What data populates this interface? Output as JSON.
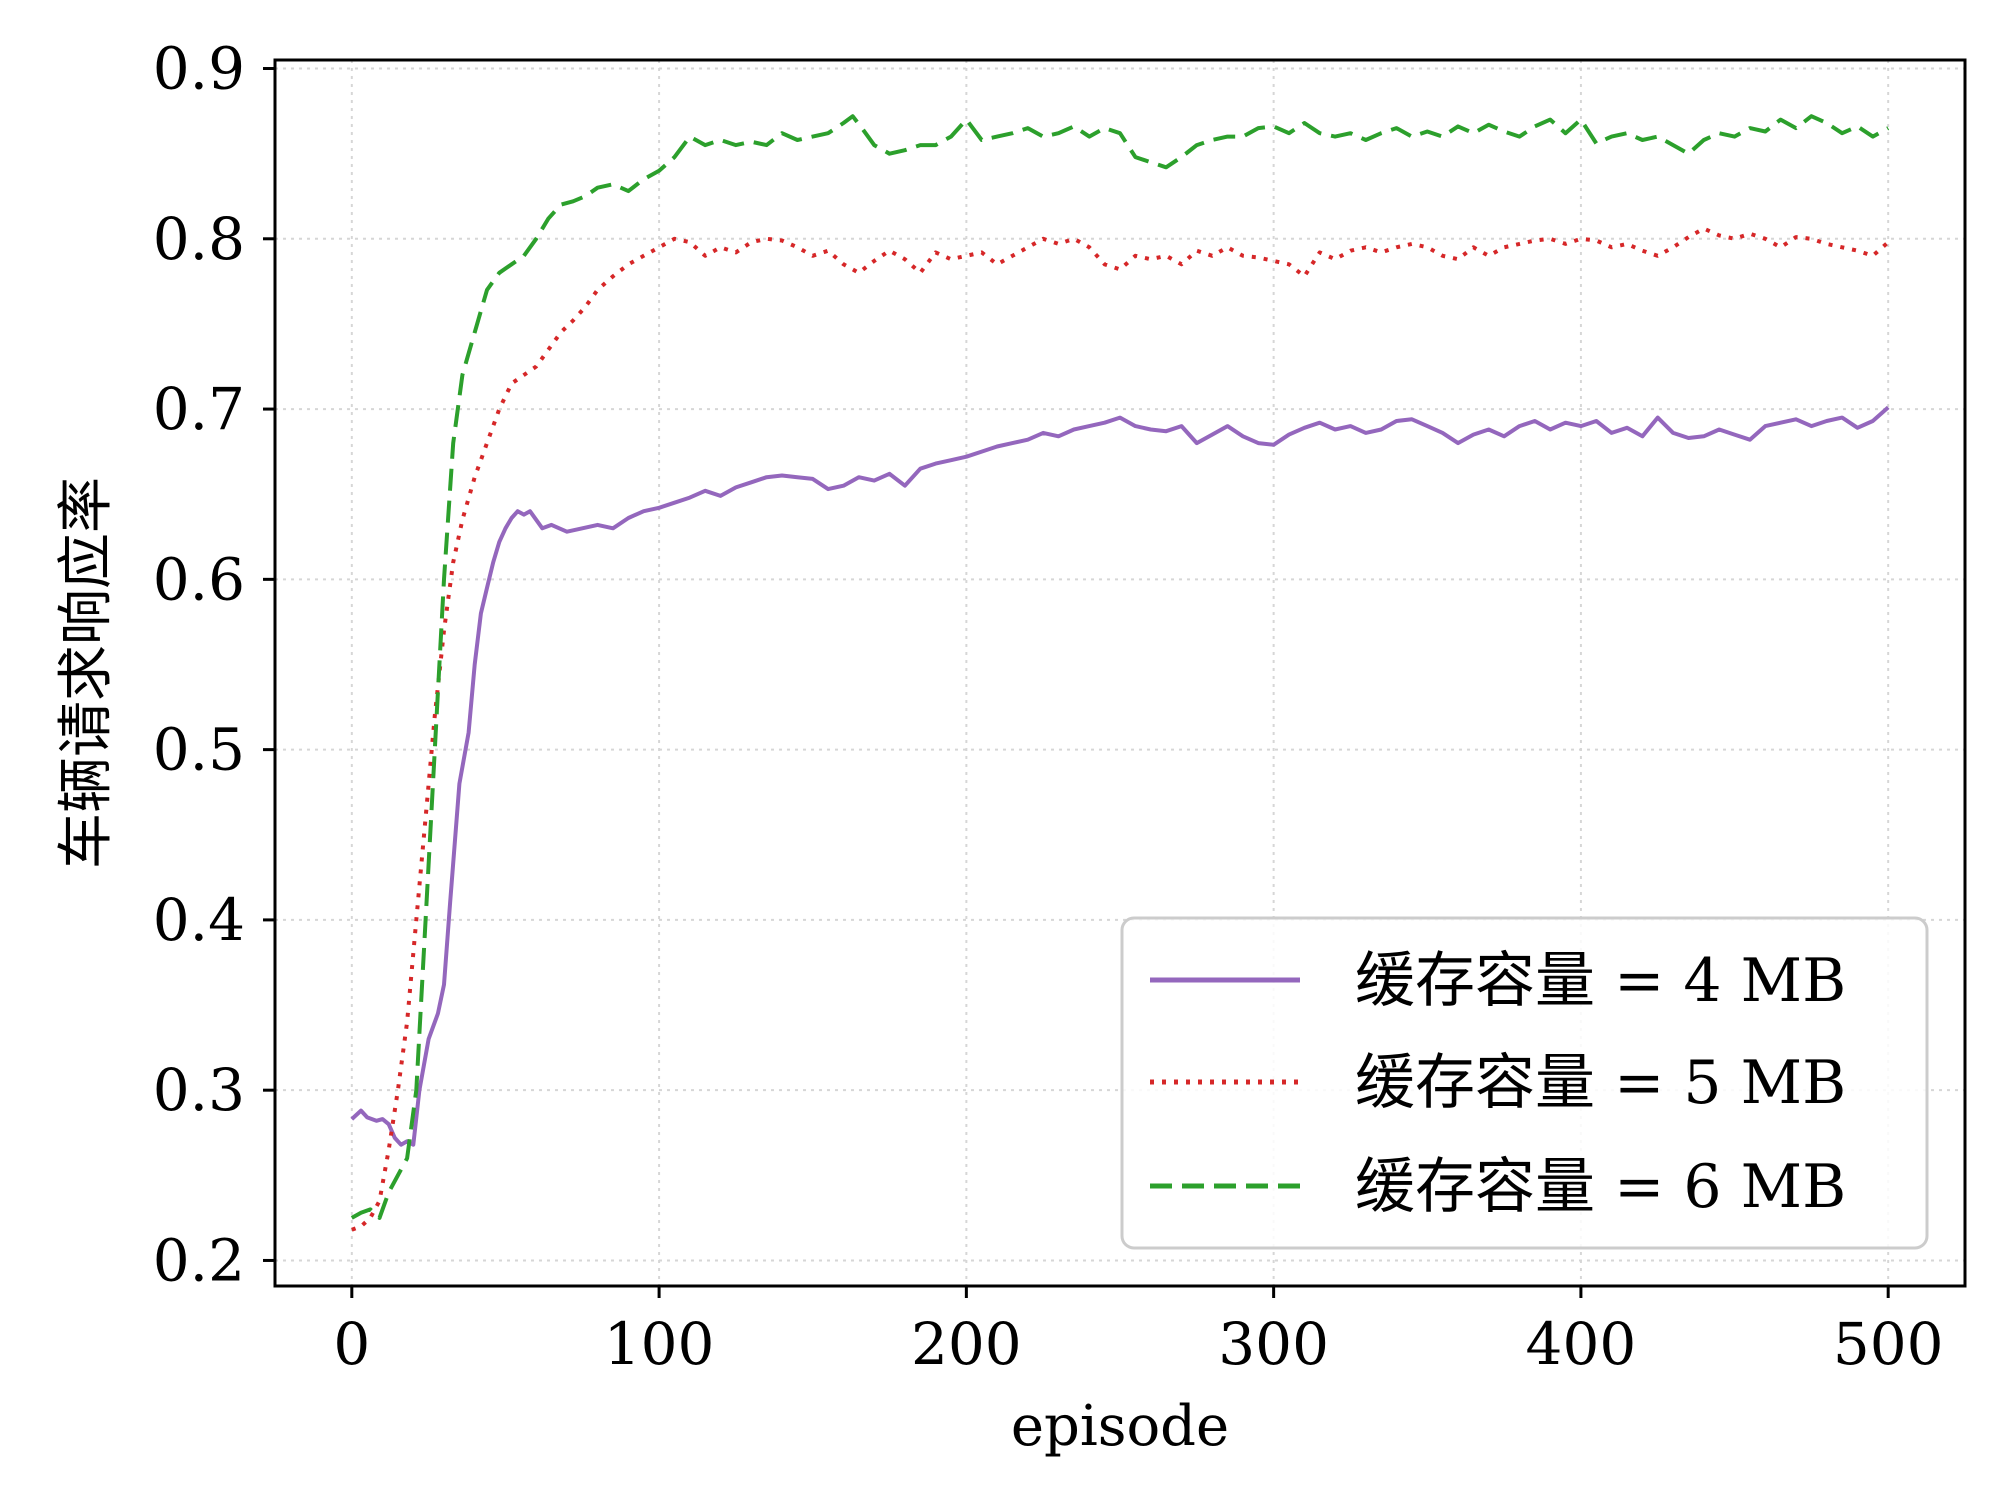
{
  "chart_data": {
    "type": "line",
    "title": "",
    "xlabel": "episode",
    "ylabel": "车辆请求响应率",
    "xlim": [
      -25,
      525
    ],
    "ylim": [
      0.185,
      0.905
    ],
    "xticks": [
      0,
      100,
      200,
      300,
      400,
      500
    ],
    "xtick_labels": [
      "0",
      "100",
      "200",
      "300",
      "400",
      "500"
    ],
    "yticks": [
      0.2,
      0.3,
      0.4,
      0.5,
      0.6,
      0.7,
      0.8,
      0.9
    ],
    "ytick_labels": [
      "0.2",
      "0.3",
      "0.4",
      "0.5",
      "0.6",
      "0.7",
      "0.8",
      "0.9"
    ],
    "grid": true,
    "legend_position": "lower-right",
    "series": [
      {
        "name": "缓存容量 = 4 MB",
        "color": "#9467bd",
        "style": "solid",
        "x": [
          0,
          3,
          5,
          8,
          10,
          12,
          14,
          16,
          18,
          20,
          22,
          25,
          28,
          30,
          32,
          35,
          38,
          40,
          42,
          44,
          46,
          48,
          50,
          52,
          54,
          56,
          58,
          60,
          62,
          65,
          70,
          75,
          80,
          85,
          90,
          95,
          100,
          105,
          110,
          115,
          120,
          125,
          130,
          135,
          140,
          145,
          150,
          155,
          160,
          165,
          170,
          175,
          180,
          185,
          190,
          195,
          200,
          205,
          210,
          215,
          220,
          225,
          230,
          235,
          240,
          245,
          250,
          255,
          260,
          265,
          270,
          275,
          280,
          285,
          290,
          295,
          300,
          305,
          310,
          315,
          320,
          325,
          330,
          335,
          340,
          345,
          350,
          355,
          360,
          365,
          370,
          375,
          380,
          385,
          390,
          395,
          400,
          405,
          410,
          415,
          420,
          425,
          430,
          435,
          440,
          445,
          450,
          455,
          460,
          465,
          470,
          475,
          480,
          485,
          490,
          495,
          500
        ],
        "values": [
          0.283,
          0.288,
          0.284,
          0.282,
          0.283,
          0.28,
          0.272,
          0.268,
          0.27,
          0.268,
          0.3,
          0.33,
          0.345,
          0.362,
          0.41,
          0.48,
          0.51,
          0.55,
          0.58,
          0.595,
          0.61,
          0.622,
          0.63,
          0.636,
          0.64,
          0.638,
          0.64,
          0.635,
          0.63,
          0.632,
          0.628,
          0.63,
          0.632,
          0.63,
          0.636,
          0.64,
          0.642,
          0.645,
          0.648,
          0.652,
          0.649,
          0.654,
          0.657,
          0.66,
          0.661,
          0.66,
          0.659,
          0.653,
          0.655,
          0.66,
          0.658,
          0.662,
          0.655,
          0.665,
          0.668,
          0.67,
          0.672,
          0.675,
          0.678,
          0.68,
          0.682,
          0.686,
          0.684,
          0.688,
          0.69,
          0.692,
          0.695,
          0.69,
          0.688,
          0.687,
          0.69,
          0.68,
          0.685,
          0.69,
          0.684,
          0.68,
          0.679,
          0.685,
          0.689,
          0.692,
          0.688,
          0.69,
          0.686,
          0.688,
          0.693,
          0.694,
          0.69,
          0.686,
          0.68,
          0.685,
          0.688,
          0.684,
          0.69,
          0.693,
          0.688,
          0.692,
          0.69,
          0.693,
          0.686,
          0.689,
          0.684,
          0.695,
          0.686,
          0.683,
          0.684,
          0.688,
          0.685,
          0.682,
          0.69,
          0.692,
          0.694,
          0.69,
          0.693,
          0.695,
          0.689,
          0.693,
          0.701
        ]
      },
      {
        "name": "缓存容量 = 5 MB",
        "color": "#d62728",
        "style": "dotted",
        "x": [
          0,
          3,
          6,
          9,
          12,
          15,
          18,
          21,
          24,
          27,
          30,
          33,
          36,
          40,
          44,
          48,
          52,
          56,
          60,
          64,
          68,
          72,
          76,
          80,
          85,
          90,
          95,
          100,
          105,
          110,
          115,
          120,
          125,
          130,
          135,
          140,
          145,
          150,
          155,
          160,
          165,
          170,
          175,
          180,
          185,
          190,
          195,
          200,
          205,
          210,
          215,
          220,
          225,
          230,
          235,
          240,
          245,
          250,
          255,
          260,
          265,
          270,
          275,
          280,
          285,
          290,
          295,
          300,
          305,
          310,
          315,
          320,
          325,
          330,
          335,
          340,
          345,
          350,
          355,
          360,
          365,
          370,
          375,
          380,
          385,
          390,
          395,
          400,
          405,
          410,
          415,
          420,
          425,
          430,
          435,
          440,
          445,
          450,
          455,
          460,
          465,
          470,
          475,
          480,
          485,
          490,
          495,
          500
        ],
        "values": [
          0.218,
          0.22,
          0.225,
          0.235,
          0.265,
          0.3,
          0.34,
          0.4,
          0.46,
          0.52,
          0.57,
          0.61,
          0.635,
          0.66,
          0.68,
          0.7,
          0.715,
          0.72,
          0.725,
          0.735,
          0.745,
          0.752,
          0.76,
          0.77,
          0.778,
          0.785,
          0.79,
          0.795,
          0.8,
          0.798,
          0.79,
          0.795,
          0.792,
          0.798,
          0.8,
          0.799,
          0.795,
          0.79,
          0.793,
          0.785,
          0.78,
          0.787,
          0.793,
          0.788,
          0.78,
          0.792,
          0.788,
          0.79,
          0.792,
          0.785,
          0.79,
          0.795,
          0.8,
          0.797,
          0.8,
          0.795,
          0.785,
          0.782,
          0.79,
          0.788,
          0.79,
          0.785,
          0.793,
          0.79,
          0.795,
          0.79,
          0.789,
          0.787,
          0.785,
          0.778,
          0.792,
          0.788,
          0.793,
          0.795,
          0.792,
          0.795,
          0.797,
          0.795,
          0.79,
          0.788,
          0.795,
          0.79,
          0.795,
          0.797,
          0.799,
          0.8,
          0.797,
          0.8,
          0.799,
          0.795,
          0.797,
          0.793,
          0.79,
          0.795,
          0.801,
          0.806,
          0.802,
          0.8,
          0.803,
          0.8,
          0.795,
          0.801,
          0.8,
          0.797,
          0.795,
          0.793,
          0.79,
          0.798
        ]
      },
      {
        "name": "缓存容量 = 6 MB",
        "color": "#2ca02c",
        "style": "dashed",
        "x": [
          0,
          3,
          6,
          9,
          12,
          15,
          18,
          21,
          24,
          27,
          30,
          33,
          36,
          40,
          44,
          48,
          52,
          56,
          60,
          64,
          68,
          72,
          76,
          80,
          85,
          90,
          95,
          100,
          105,
          110,
          115,
          120,
          125,
          130,
          135,
          140,
          145,
          150,
          155,
          160,
          163,
          166,
          170,
          175,
          180,
          185,
          190,
          195,
          200,
          205,
          210,
          215,
          220,
          225,
          230,
          235,
          240,
          245,
          250,
          255,
          260,
          265,
          270,
          275,
          280,
          285,
          290,
          295,
          300,
          305,
          310,
          315,
          320,
          325,
          330,
          335,
          340,
          345,
          350,
          355,
          360,
          365,
          370,
          375,
          380,
          385,
          390,
          395,
          400,
          405,
          410,
          415,
          420,
          425,
          430,
          435,
          440,
          445,
          450,
          455,
          460,
          465,
          470,
          475,
          480,
          485,
          490,
          495,
          500
        ],
        "values": [
          0.225,
          0.228,
          0.23,
          0.225,
          0.24,
          0.25,
          0.26,
          0.3,
          0.4,
          0.5,
          0.6,
          0.68,
          0.72,
          0.745,
          0.77,
          0.78,
          0.785,
          0.79,
          0.8,
          0.812,
          0.82,
          0.822,
          0.825,
          0.83,
          0.832,
          0.828,
          0.835,
          0.84,
          0.848,
          0.86,
          0.855,
          0.858,
          0.855,
          0.857,
          0.855,
          0.862,
          0.858,
          0.86,
          0.862,
          0.868,
          0.872,
          0.865,
          0.855,
          0.85,
          0.852,
          0.855,
          0.855,
          0.86,
          0.87,
          0.858,
          0.86,
          0.862,
          0.865,
          0.86,
          0.862,
          0.866,
          0.86,
          0.865,
          0.862,
          0.848,
          0.845,
          0.842,
          0.848,
          0.855,
          0.858,
          0.86,
          0.86,
          0.865,
          0.866,
          0.862,
          0.868,
          0.862,
          0.86,
          0.862,
          0.858,
          0.862,
          0.865,
          0.86,
          0.863,
          0.86,
          0.866,
          0.862,
          0.867,
          0.863,
          0.86,
          0.866,
          0.87,
          0.862,
          0.87,
          0.856,
          0.86,
          0.862,
          0.858,
          0.86,
          0.855,
          0.85,
          0.858,
          0.862,
          0.86,
          0.865,
          0.863,
          0.87,
          0.865,
          0.872,
          0.868,
          0.862,
          0.866,
          0.86,
          0.865
        ]
      }
    ]
  }
}
